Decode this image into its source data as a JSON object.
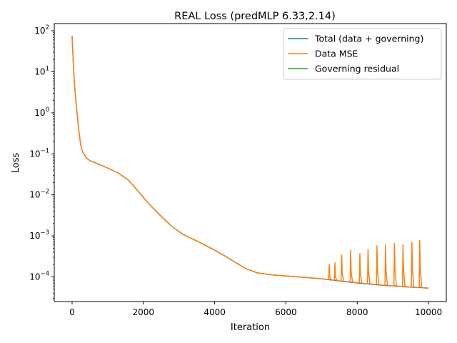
{
  "chart_data": {
    "type": "line",
    "title": "REAL Loss (predMLP 6.33,2.14)",
    "xlabel": "Iteration",
    "ylabel": "Loss",
    "yscale": "log",
    "xlim": [
      -500,
      10500
    ],
    "ylim": [
      2.5e-05,
      150
    ],
    "xticks": [
      0,
      2000,
      4000,
      6000,
      8000,
      10000
    ],
    "xtick_labels": [
      "0",
      "2000",
      "4000",
      "6000",
      "8000",
      "10000"
    ],
    "yticks": [
      0.0001,
      0.001,
      0.01,
      0.1,
      1,
      10,
      100
    ],
    "ytick_exponents": [
      "−4",
      "−3",
      "−2",
      "−1",
      "0",
      "1",
      "2"
    ],
    "ytick_base": "10",
    "grid": false,
    "legend_position": "top-right",
    "series": [
      {
        "name": "Total (data + governing)",
        "color": "#1f77b4",
        "x": [
          0,
          30,
          60,
          100,
          150,
          200,
          250,
          300,
          400,
          500,
          700,
          1000,
          1300,
          1600,
          1900,
          2200,
          2500,
          2800,
          3100,
          3500,
          4000,
          4300,
          4600,
          4900,
          5200,
          5600,
          6000,
          6500,
          7000,
          7220,
          7380,
          7580,
          7820,
          8080,
          8310,
          8560,
          8800,
          9050,
          9290,
          9540,
          9760,
          10000
        ],
        "y": [
          75,
          20,
          6,
          2.2,
          0.8,
          0.3,
          0.15,
          0.11,
          0.08,
          0.068,
          0.058,
          0.045,
          0.034,
          0.022,
          0.011,
          0.0055,
          0.003,
          0.0017,
          0.0011,
          0.00075,
          0.00045,
          0.00032,
          0.00022,
          0.000155,
          0.000125,
          0.000112,
          0.000105,
          9.8e-05,
          9e-05,
          8.5e-05,
          8.2e-05,
          7.8e-05,
          7.4e-05,
          7e-05,
          6.7e-05,
          6.4e-05,
          6.2e-05,
          6e-05,
          5.8e-05,
          5.6e-05,
          5.5e-05,
          5.3e-05
        ]
      },
      {
        "name": "Data MSE",
        "color": "#ff7f0e",
        "x": [
          0,
          30,
          60,
          100,
          150,
          200,
          250,
          300,
          400,
          500,
          700,
          1000,
          1300,
          1600,
          1900,
          2200,
          2500,
          2800,
          3100,
          3500,
          4000,
          4300,
          4600,
          4900,
          5200,
          5600,
          6000,
          6500,
          7000,
          7200,
          7215,
          7230,
          7270,
          7360,
          7375,
          7390,
          7430,
          7550,
          7565,
          7580,
          7620,
          7800,
          7815,
          7830,
          7870,
          8060,
          8075,
          8090,
          8130,
          8290,
          8305,
          8320,
          8360,
          8540,
          8555,
          8570,
          8610,
          8780,
          8795,
          8810,
          8850,
          9030,
          9045,
          9060,
          9100,
          9270,
          9285,
          9300,
          9340,
          9520,
          9535,
          9550,
          9590,
          9740,
          9755,
          9770,
          9810,
          10000
        ],
        "y": [
          75,
          20,
          6,
          2.2,
          0.8,
          0.3,
          0.15,
          0.11,
          0.08,
          0.068,
          0.058,
          0.045,
          0.034,
          0.022,
          0.011,
          0.0055,
          0.003,
          0.0017,
          0.0011,
          0.00075,
          0.00045,
          0.00032,
          0.00022,
          0.000155,
          0.000125,
          0.000112,
          0.000105,
          9.8e-05,
          9e-05,
          8.6e-05,
          0.0002,
          0.0001,
          8.4e-05,
          8.2e-05,
          0.00022,
          0.0001,
          8.1e-05,
          7.9e-05,
          0.00034,
          0.00012,
          7.8e-05,
          7.5e-05,
          0.00045,
          0.00013,
          7.4e-05,
          7.1e-05,
          0.00037,
          0.00012,
          7e-05,
          6.8e-05,
          0.00047,
          0.00013,
          6.7e-05,
          6.5e-05,
          0.00057,
          0.00014,
          6.4e-05,
          6.2e-05,
          0.0006,
          0.00014,
          6.1e-05,
          6e-05,
          0.00065,
          0.00015,
          5.9e-05,
          5.8e-05,
          0.00061,
          0.00015,
          5.7e-05,
          5.6e-05,
          0.0007,
          0.00015,
          5.5e-05,
          5.5e-05,
          0.00078,
          0.00016,
          5.4e-05,
          5.3e-05
        ]
      },
      {
        "name": "Governing residual",
        "color": "#2ca02c",
        "x": [],
        "y": []
      }
    ]
  }
}
